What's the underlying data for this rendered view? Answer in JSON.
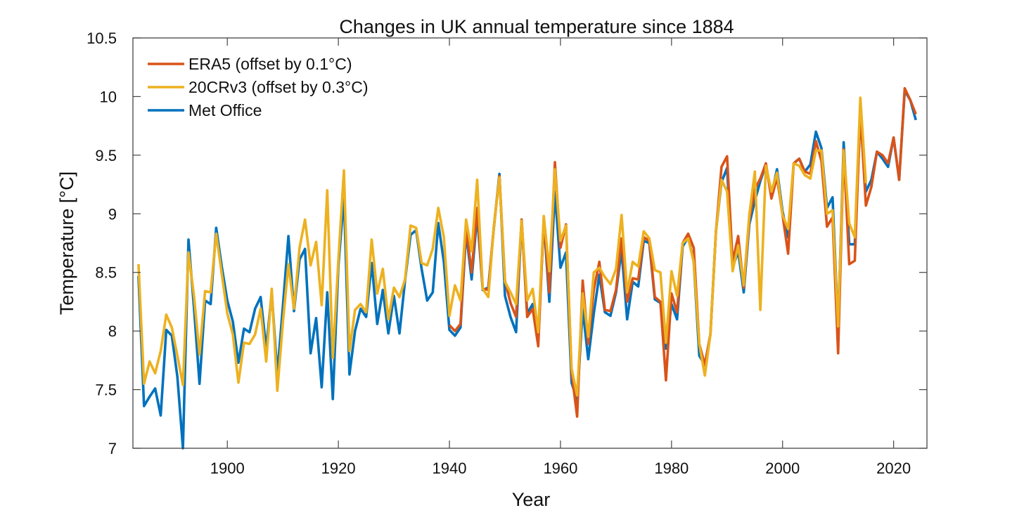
{
  "chart_data": {
    "type": "line",
    "title": "Changes in UK annual temperature since 1884",
    "xlabel": "Year",
    "ylabel": "Temperature [°C]",
    "xlim": [
      1883,
      2026
    ],
    "ylim": [
      7,
      10.5
    ],
    "xticks": [
      1900,
      1920,
      1940,
      1960,
      1980,
      2000,
      2020
    ],
    "yticks": [
      7,
      7.5,
      8,
      8.5,
      9,
      9.5,
      10,
      10.5
    ],
    "ytick_labels": [
      "7",
      "7.5",
      "8",
      "8.5",
      "9",
      "9.5",
      "10",
      "10.5"
    ],
    "grid": false,
    "legend_position": "top-left",
    "series": [
      {
        "name": "ERA5 (offset by 0.1°C)",
        "color": "#D95319",
        "start_year": 1940,
        "values": [
          8.05,
          8.0,
          8.06,
          8.88,
          8.5,
          9.05,
          8.36,
          8.35,
          8.89,
          9.32,
          8.43,
          8.24,
          8.12,
          8.95,
          8.12,
          8.19,
          7.87,
          8.96,
          8.33,
          9.44,
          8.71,
          8.91,
          7.65,
          7.27,
          8.43,
          7.89,
          8.35,
          8.59,
          8.18,
          8.17,
          8.35,
          8.79,
          8.25,
          8.45,
          8.44,
          8.8,
          8.77,
          8.29,
          8.25,
          7.58,
          8.32,
          8.16,
          8.75,
          8.83,
          8.71,
          7.89,
          7.71,
          7.97,
          8.85,
          9.4,
          9.49,
          8.59,
          8.81,
          8.37,
          8.95,
          9.21,
          9.3,
          9.43,
          9.13,
          9.31,
          8.99,
          8.66,
          9.43,
          9.47,
          9.36,
          9.34,
          9.62,
          9.45,
          8.89,
          8.97,
          7.81,
          9.55,
          8.57,
          8.6,
          9.87,
          9.07,
          9.23,
          9.53,
          9.5,
          9.43,
          9.65,
          9.29,
          10.07,
          9.97,
          9.85
        ]
      },
      {
        "name": "20CRv3 (offset by 0.3°C)",
        "color": "#EDB120",
        "start_year": 1884,
        "values": [
          8.57,
          7.55,
          7.74,
          7.64,
          7.83,
          8.14,
          8.03,
          7.79,
          7.54,
          8.67,
          8.3,
          7.8,
          8.34,
          8.33,
          8.83,
          8.49,
          8.15,
          7.97,
          7.56,
          7.9,
          7.89,
          7.97,
          8.19,
          7.74,
          8.36,
          7.49,
          8.07,
          8.57,
          8.19,
          8.71,
          8.95,
          8.56,
          8.76,
          8.22,
          9.2,
          7.77,
          8.6,
          9.37,
          7.83,
          8.18,
          8.23,
          8.16,
          8.78,
          8.32,
          8.53,
          8.1,
          8.37,
          8.29,
          8.44,
          8.9,
          8.88,
          8.58,
          8.56,
          8.7,
          9.05,
          8.8,
          8.13,
          8.39,
          8.26,
          8.95,
          8.68,
          9.29,
          8.36,
          8.29,
          8.89,
          9.31,
          8.42,
          8.33,
          8.23,
          8.94,
          8.26,
          8.36,
          7.99,
          8.98,
          8.51,
          9.38,
          8.77,
          8.9,
          7.68,
          7.45,
          8.32,
          7.95,
          8.5,
          8.54,
          8.46,
          8.4,
          8.53,
          8.99,
          8.33,
          8.59,
          8.55,
          8.85,
          8.79,
          8.52,
          8.5,
          7.9,
          8.51,
          8.3,
          8.75,
          8.79,
          8.59,
          7.89,
          7.62,
          7.97,
          8.85,
          9.29,
          9.19,
          8.51,
          8.73,
          8.39,
          8.99,
          9.36,
          8.18,
          9.41,
          9.19,
          9.35,
          8.99,
          8.87,
          9.43,
          9.41,
          9.33,
          9.3,
          9.54,
          9.54,
          9.0,
          9.03,
          8.04,
          9.54,
          8.92,
          8.8,
          9.99,
          9.26
        ]
      },
      {
        "name": "Met Office",
        "color": "#0072BD",
        "start_year": 1884,
        "values": [
          8.47,
          7.36,
          7.44,
          7.51,
          7.28,
          8.01,
          7.96,
          7.61,
          7.0,
          8.78,
          8.2,
          7.55,
          8.26,
          8.23,
          8.88,
          8.55,
          8.26,
          8.08,
          7.73,
          8.02,
          7.99,
          8.19,
          8.29,
          7.85,
          8.33,
          7.63,
          8.21,
          8.81,
          8.17,
          8.61,
          8.7,
          7.81,
          8.11,
          7.52,
          8.33,
          7.42,
          8.55,
          9.15,
          7.63,
          8.0,
          8.19,
          8.12,
          8.58,
          8.06,
          8.35,
          7.98,
          8.3,
          7.98,
          8.43,
          8.82,
          8.86,
          8.53,
          8.26,
          8.33,
          8.92,
          8.59,
          8.01,
          7.96,
          8.03,
          8.84,
          8.44,
          8.99,
          8.35,
          8.37,
          8.88,
          9.34,
          8.3,
          8.12,
          7.99,
          8.95,
          8.15,
          8.23,
          7.95,
          8.94,
          8.25,
          9.19,
          8.54,
          8.67,
          7.56,
          7.41,
          8.19,
          7.76,
          8.15,
          8.48,
          8.16,
          8.13,
          8.33,
          8.69,
          8.1,
          8.42,
          8.38,
          8.77,
          8.75,
          8.27,
          8.24,
          7.85,
          8.23,
          8.1,
          8.72,
          8.8,
          8.59,
          7.79,
          7.71,
          7.97,
          8.85,
          9.27,
          9.39,
          8.54,
          8.68,
          8.33,
          8.91,
          9.11,
          9.28,
          9.42,
          9.16,
          9.38,
          9.02,
          8.8,
          9.43,
          9.47,
          9.36,
          9.42,
          9.7,
          9.56,
          9.05,
          9.14,
          8.03,
          9.61,
          8.74,
          8.74,
          9.83,
          9.19,
          9.29,
          9.53,
          9.47,
          9.4,
          9.65,
          9.29,
          10.05,
          9.97,
          9.8
        ]
      }
    ]
  }
}
